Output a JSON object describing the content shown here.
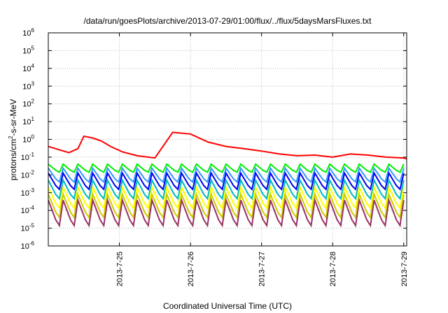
{
  "chart_data": {
    "type": "line",
    "title": "/data/run/goesPlots/archive/2013-07-29/01:00/flux/../flux/5daysMarsFluxes.txt",
    "xlabel": "Coordinated Universal Time (UTC)",
    "ylabel": "protons/cm2-s-sr-MeV",
    "ylabel_parts": [
      "protons/cm",
      "2",
      "-s-sr-MeV"
    ],
    "y_scale": "log",
    "ylim": [
      1e-06,
      1000000.0
    ],
    "y_ticks": [
      {
        "base": "10",
        "exp": "-6",
        "value": 1e-06
      },
      {
        "base": "10",
        "exp": "-5",
        "value": 1e-05
      },
      {
        "base": "10",
        "exp": "-4",
        "value": 0.0001
      },
      {
        "base": "10",
        "exp": "-3",
        "value": 0.001
      },
      {
        "base": "10",
        "exp": "-2",
        "value": 0.01
      },
      {
        "base": "10",
        "exp": "-1",
        "value": 0.1
      },
      {
        "base": "10",
        "exp": "0",
        "value": 1
      },
      {
        "base": "10",
        "exp": "1",
        "value": 10
      },
      {
        "base": "10",
        "exp": "2",
        "value": 100
      },
      {
        "base": "10",
        "exp": "3",
        "value": 1000
      },
      {
        "base": "10",
        "exp": "4",
        "value": 10000
      },
      {
        "base": "10",
        "exp": "5",
        "value": 100000
      },
      {
        "base": "10",
        "exp": "6",
        "value": 1000000
      }
    ],
    "xlim": [
      "2013-07-24 00:00",
      "2013-07-29 01:00"
    ],
    "x_ticks": [
      {
        "label": "2013-7-25",
        "date": "2013-07-25 00:00"
      },
      {
        "label": "2013-7-26",
        "date": "2013-07-26 00:00"
      },
      {
        "label": "2013-7-27",
        "date": "2013-07-27 00:00"
      },
      {
        "label": "2013-7-28",
        "date": "2013-07-28 00:00"
      },
      {
        "label": "2013-7-29",
        "date": "2013-07-29 00:00"
      }
    ],
    "grid": true,
    "x": [
      "2013-07-24 00:00",
      "2013-07-24 04:00",
      "2013-07-24 07:00",
      "2013-07-24 10:00",
      "2013-07-24 12:00",
      "2013-07-24 15:00",
      "2013-07-24 18:00",
      "2013-07-24 21:00",
      "2013-07-25 01:00",
      "2013-07-25 06:00",
      "2013-07-25 12:00",
      "2013-07-25 18:00",
      "2013-07-26 00:00",
      "2013-07-26 06:00",
      "2013-07-26 12:00",
      "2013-07-26 18:00",
      "2013-07-27 00:00",
      "2013-07-27 06:00",
      "2013-07-27 12:00",
      "2013-07-27 18:00",
      "2013-07-28 00:00",
      "2013-07-28 06:00",
      "2013-07-28 12:00",
      "2013-07-28 18:00",
      "2013-07-29 00:00",
      "2013-07-29 01:00"
    ],
    "y_red": [
      0.4,
      0.25,
      0.18,
      0.3,
      1.5,
      1.2,
      0.8,
      0.4,
      0.2,
      0.12,
      0.09,
      2.5,
      2.0,
      0.7,
      0.4,
      0.3,
      0.22,
      0.15,
      0.12,
      0.13,
      0.1,
      0.15,
      0.13,
      0.1,
      0.09,
      0.08
    ],
    "series": [
      {
        "color": "#ff0000",
        "level": 0.3,
        "spike": 0,
        "data_key": "y_red"
      },
      {
        "color": "#00ee00",
        "level": 0.018,
        "spike": 0.35
      },
      {
        "color": "#3399ff",
        "level": 0.006,
        "spike": 0.6
      },
      {
        "color": "#0000ee",
        "level": 0.0025,
        "spike": 0.7
      },
      {
        "color": "#00bbbb",
        "level": 0.0008,
        "spike": 0.8
      },
      {
        "color": "#ffff00",
        "level": 0.00025,
        "spike": 0.9
      },
      {
        "color": "#cccc00",
        "level": 8e-05,
        "spike": 1.0
      },
      {
        "color": "#993366",
        "level": 3e-05,
        "spike": 1.1
      }
    ],
    "spike_period_hours": 5
  },
  "colors": {
    "grid": "#bbbbbb",
    "axis": "#000000"
  }
}
